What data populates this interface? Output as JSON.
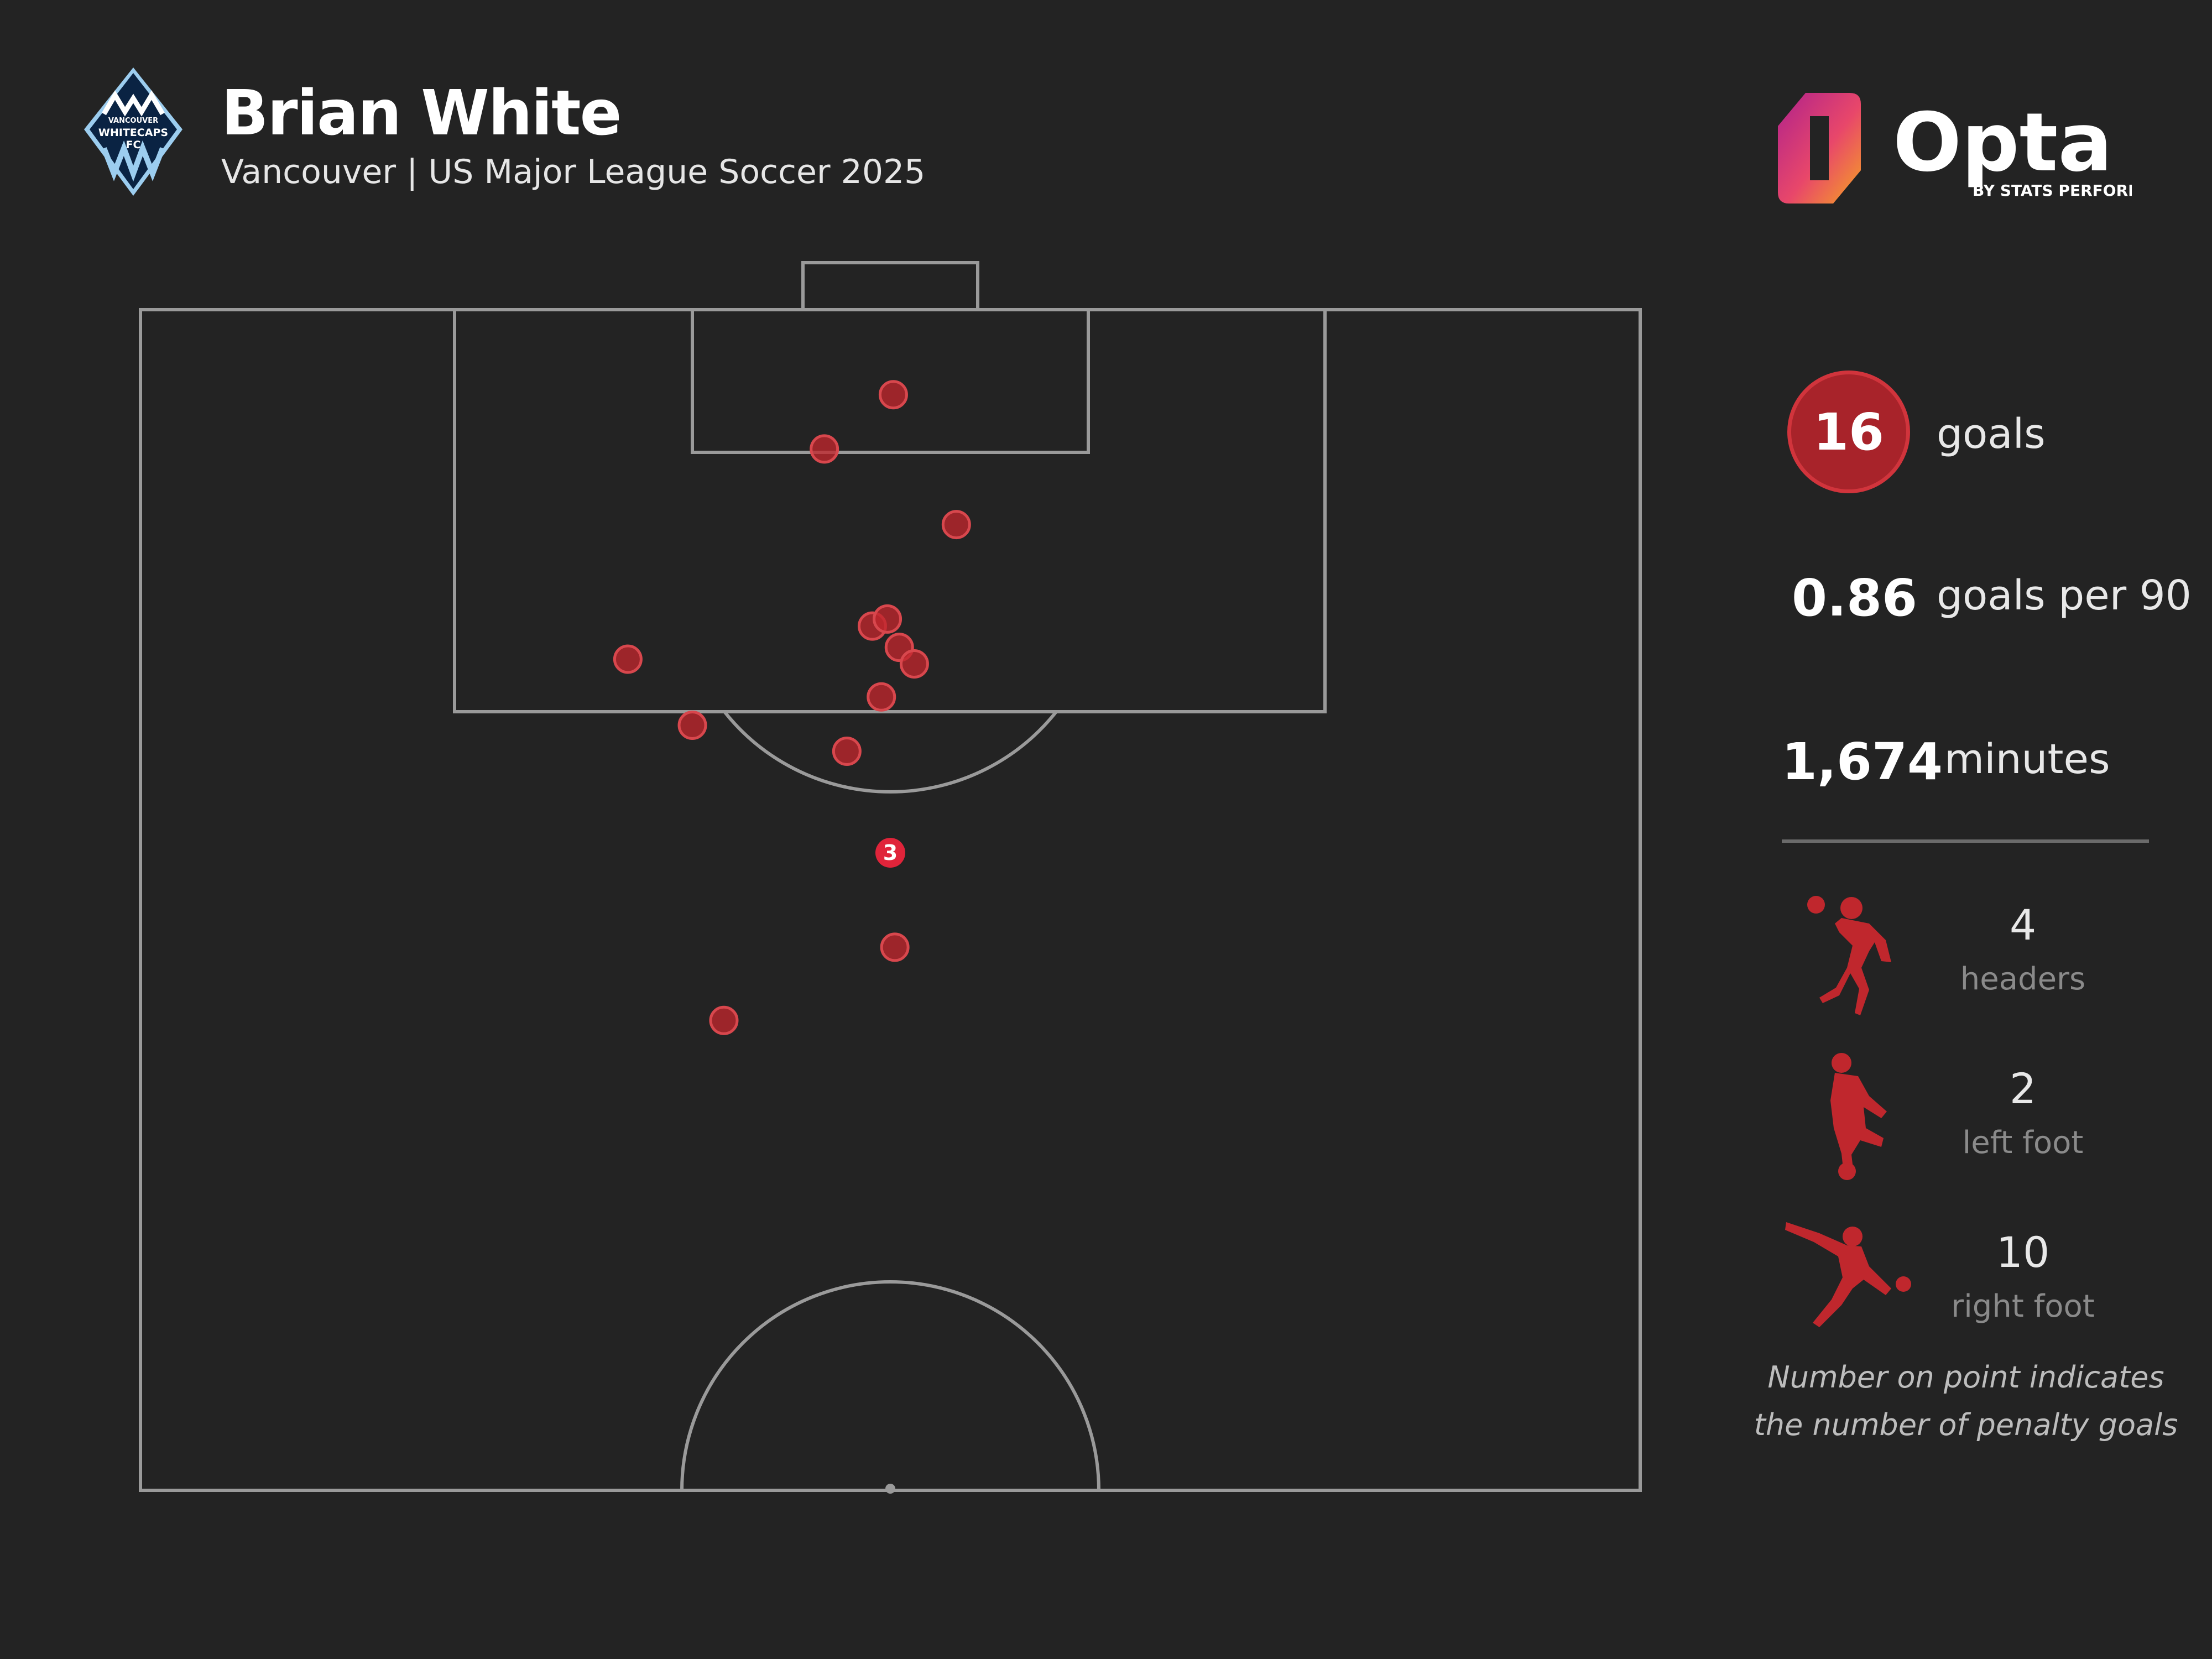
{
  "header": {
    "player_name": "Brian White",
    "subtitle": "Vancouver | US Major League Soccer 2025",
    "crest_text": [
      "VANCOUVER",
      "WHITECAPS",
      "FC"
    ],
    "brand_main": "Opta",
    "brand_sub": "BY STATS PERFORM"
  },
  "stats": {
    "goals_value": "16",
    "goals_label": "goals",
    "gp90_value": "0.86",
    "gp90_label": "goals per 90",
    "minutes_value": "1,674",
    "minutes_label": "minutes"
  },
  "breakdown": [
    {
      "icon": "header-player-icon",
      "value": "4",
      "label": "headers"
    },
    {
      "icon": "left-foot-player-icon",
      "value": "2",
      "label": "left foot"
    },
    {
      "icon": "right-foot-player-icon",
      "value": "10",
      "label": "right foot"
    }
  ],
  "note": [
    "Number on point indicates",
    "the number of penalty goals"
  ],
  "colors": {
    "background": "#232323",
    "pitch_lines": "#9a9a9a",
    "goal_marker": "#c0272d",
    "penalty_marker": "#e0243a",
    "goals_circle": "#a8232a"
  },
  "chart_data": {
    "type": "scatter",
    "description_source": "goal locations on attacking half pitch (x across width, y distance from goal line in pitch units 0-100 length)",
    "pitch": {
      "length": 100,
      "width": 100,
      "view": "attacking-half"
    },
    "points": [
      {
        "x": 50.2,
        "y": 3.6
      },
      {
        "x": 45.6,
        "y": 5.9
      },
      {
        "x": 54.4,
        "y": 9.1
      },
      {
        "x": 32.5,
        "y": 14.8
      },
      {
        "x": 48.8,
        "y": 13.4
      },
      {
        "x": 49.8,
        "y": 13.1
      },
      {
        "x": 50.6,
        "y": 14.3
      },
      {
        "x": 51.6,
        "y": 15.0
      },
      {
        "x": 49.4,
        "y": 16.4
      },
      {
        "x": 36.8,
        "y": 17.6
      },
      {
        "x": 47.1,
        "y": 18.7
      },
      {
        "x": 50.3,
        "y": 27.0
      },
      {
        "x": 38.9,
        "y": 30.1
      }
    ],
    "penalty": {
      "x": 50,
      "y": 23,
      "count": 3,
      "label": "3"
    }
  }
}
